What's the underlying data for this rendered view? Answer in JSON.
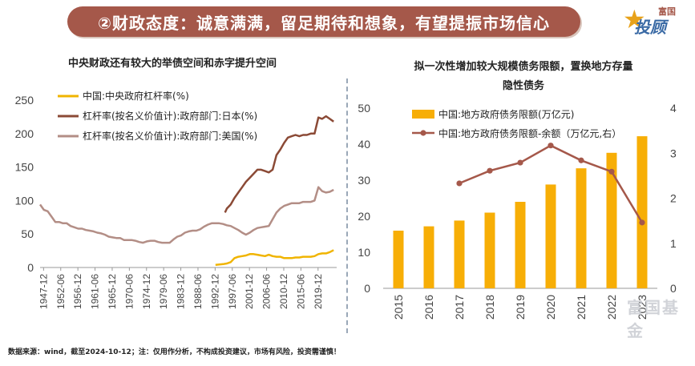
{
  "banner": {
    "title": "②财政态度：诚意满满，留足期待和想象，有望提振市场信心"
  },
  "logo": {
    "text_top": "富国",
    "text_main": "投顾",
    "icon": "star-icon"
  },
  "watermark": "富国基金",
  "footer": "数据来源：wind，截至2024-10-12；注：仅用作分析，不构成投资建议，市场有风险，投资需谨慎！",
  "chart_data": [
    {
      "type": "line",
      "title": "中央财政还有较大的举债空间和赤字提升空间",
      "ylim": [
        0,
        250
      ],
      "yticks": [
        0,
        50,
        100,
        150,
        200,
        250
      ],
      "xlim": [
        1947,
        2024.8
      ],
      "xticks": [
        "1947-12",
        "1952-06",
        "1956-12",
        "1961-06",
        "1965-12",
        "1970-06",
        "1974-12",
        "1979-06",
        "1983-12",
        "1988-06",
        "1992-12",
        "1997-06",
        "2001-12",
        "2006-06",
        "2010-12",
        "2015-06",
        "2019-12"
      ],
      "series": [
        {
          "name": "中国:中央政府杠杆率(%)",
          "color": "#f0b400",
          "points": [
            [
              1993,
              4
            ],
            [
              1995,
              5
            ],
            [
              1996,
              6
            ],
            [
              1997,
              8
            ],
            [
              1998,
              14
            ],
            [
              1999,
              16
            ],
            [
              2000,
              17
            ],
            [
              2001,
              18
            ],
            [
              2002,
              20
            ],
            [
              2003,
              20
            ],
            [
              2004,
              19
            ],
            [
              2005,
              18
            ],
            [
              2006,
              17
            ],
            [
              2007,
              19
            ],
            [
              2008,
              17
            ],
            [
              2009,
              16
            ],
            [
              2010,
              16
            ],
            [
              2011,
              14
            ],
            [
              2012,
              14
            ],
            [
              2013,
              14
            ],
            [
              2014,
              15
            ],
            [
              2015,
              15
            ],
            [
              2016,
              16
            ],
            [
              2017,
              16
            ],
            [
              2018,
              16
            ],
            [
              2019,
              17
            ],
            [
              2020,
              20
            ],
            [
              2021,
              21
            ],
            [
              2022,
              21
            ],
            [
              2023,
              23
            ],
            [
              2024,
              26
            ]
          ]
        },
        {
          "name": "杠杆率(按名义价值计):政府部门:日本(%)",
          "color": "#8b4a36",
          "points": [
            [
              1995.5,
              82
            ],
            [
              1996,
              88
            ],
            [
              1997,
              94
            ],
            [
              1998,
              104
            ],
            [
              1999,
              112
            ],
            [
              2000,
              120
            ],
            [
              2001,
              128
            ],
            [
              2002,
              134
            ],
            [
              2003,
              140
            ],
            [
              2004,
              146
            ],
            [
              2005,
              146
            ],
            [
              2006,
              144
            ],
            [
              2007,
              142
            ],
            [
              2008,
              146
            ],
            [
              2009,
              168
            ],
            [
              2010,
              176
            ],
            [
              2011,
              186
            ],
            [
              2012,
              194
            ],
            [
              2013,
              196
            ],
            [
              2014,
              198
            ],
            [
              2015,
              196
            ],
            [
              2016,
              198
            ],
            [
              2017,
              198
            ],
            [
              2018,
              200
            ],
            [
              2019,
              200
            ],
            [
              2020,
              224
            ],
            [
              2021,
              222
            ],
            [
              2022,
              226
            ],
            [
              2023,
              222
            ],
            [
              2024,
              218
            ]
          ]
        },
        {
          "name": "杠杆率(按名义价值计):政府部门:美国(%)",
          "color": "#b38e86",
          "points": [
            [
              1947,
              94
            ],
            [
              1948,
              86
            ],
            [
              1949,
              84
            ],
            [
              1950,
              76
            ],
            [
              1951,
              68
            ],
            [
              1952,
              68
            ],
            [
              1953,
              66
            ],
            [
              1954,
              66
            ],
            [
              1955,
              62
            ],
            [
              1956,
              60
            ],
            [
              1957,
              58
            ],
            [
              1958,
              58
            ],
            [
              1959,
              56
            ],
            [
              1960,
              55
            ],
            [
              1961,
              54
            ],
            [
              1962,
              52
            ],
            [
              1963,
              51
            ],
            [
              1964,
              49
            ],
            [
              1965,
              46
            ],
            [
              1966,
              45
            ],
            [
              1967,
              44
            ],
            [
              1968,
              44
            ],
            [
              1969,
              41
            ],
            [
              1970,
              41
            ],
            [
              1971,
              41
            ],
            [
              1972,
              40
            ],
            [
              1973,
              38
            ],
            [
              1974,
              37
            ],
            [
              1975,
              39
            ],
            [
              1976,
              40
            ],
            [
              1977,
              40
            ],
            [
              1978,
              38
            ],
            [
              1979,
              37
            ],
            [
              1980,
              37
            ],
            [
              1981,
              37
            ],
            [
              1982,
              42
            ],
            [
              1983,
              46
            ],
            [
              1984,
              48
            ],
            [
              1985,
              52
            ],
            [
              1986,
              54
            ],
            [
              1987,
              55
            ],
            [
              1988,
              55
            ],
            [
              1989,
              57
            ],
            [
              1990,
              61
            ],
            [
              1991,
              64
            ],
            [
              1992,
              66
            ],
            [
              1993,
              66
            ],
            [
              1994,
              66
            ],
            [
              1995,
              65
            ],
            [
              1996,
              63
            ],
            [
              1997,
              62
            ],
            [
              1998,
              59
            ],
            [
              1999,
              56
            ],
            [
              2000,
              52
            ],
            [
              2001,
              49
            ],
            [
              2002,
              52
            ],
            [
              2003,
              56
            ],
            [
              2004,
              59
            ],
            [
              2005,
              60
            ],
            [
              2006,
              61
            ],
            [
              2007,
              62
            ],
            [
              2008,
              72
            ],
            [
              2009,
              82
            ],
            [
              2010,
              88
            ],
            [
              2011,
              92
            ],
            [
              2012,
              94
            ],
            [
              2013,
              96
            ],
            [
              2014,
              96
            ],
            [
              2015,
              96
            ],
            [
              2016,
              98
            ],
            [
              2017,
              98
            ],
            [
              2018,
              98
            ],
            [
              2019,
              100
            ],
            [
              2020,
              120
            ],
            [
              2021,
              114
            ],
            [
              2022,
              112
            ],
            [
              2023,
              113
            ],
            [
              2024,
              116
            ]
          ]
        }
      ]
    },
    {
      "type": "bar",
      "title": "拟一次性增加较大规模债务限额，置换地方存量隐性债务",
      "title_lines": [
        "拟一次性增加较大规模债务限额，置换地方存量",
        "隐性债务"
      ],
      "categories": [
        "2015",
        "2016",
        "2017",
        "2018",
        "2019",
        "2020",
        "2021",
        "2022",
        "2023"
      ],
      "ylim": [
        0,
        50
      ],
      "yticks": [
        0,
        10,
        20,
        30,
        40,
        50
      ],
      "y2lim": [
        0,
        4
      ],
      "y2ticks": [
        0,
        1,
        2,
        3,
        4
      ],
      "series": [
        {
          "name": "中国:地方政府债务限额(万亿元)",
          "type": "bar",
          "axis": "left",
          "color": "#f7ae06",
          "values": [
            16,
            17.2,
            18.8,
            21,
            24,
            28.8,
            33.3,
            37.6,
            42.2
          ]
        },
        {
          "name": "中国:地方政府债务限额-余额（万亿元,右）",
          "type": "line",
          "axis": "right",
          "color": "#a5584a",
          "values": [
            null,
            null,
            2.33,
            2.61,
            2.79,
            3.17,
            2.84,
            2.59,
            1.46
          ]
        }
      ]
    }
  ]
}
